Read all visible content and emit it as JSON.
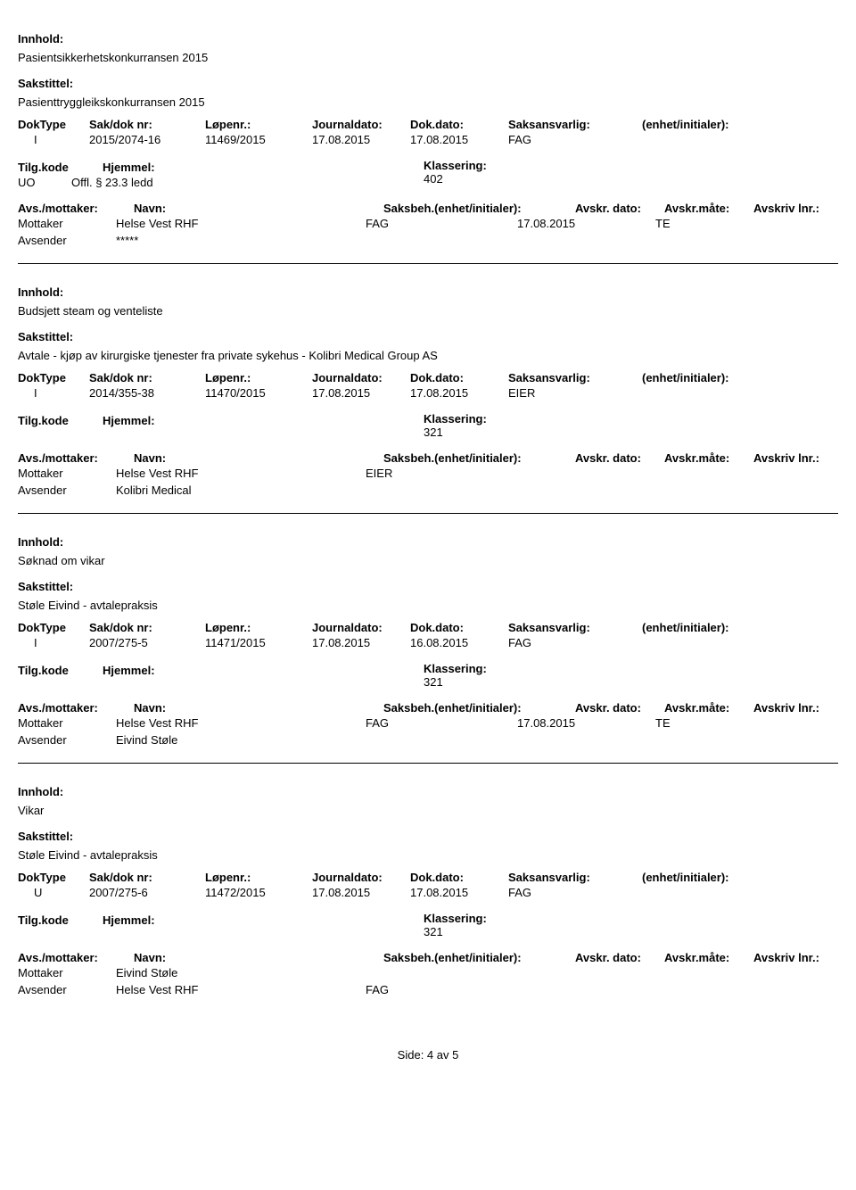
{
  "labels": {
    "innhold": "Innhold:",
    "sakstittel": "Sakstittel:",
    "doktype": "DokType",
    "sakdoknr": "Sak/dok nr:",
    "lopenr": "Løpenr.:",
    "journaldato": "Journaldato:",
    "dokdato": "Dok.dato:",
    "saksansvarlig": "Saksansvarlig:",
    "enhet": "(enhet/initialer):",
    "tilgkode": "Tilg.kode",
    "hjemmel": "Hjemmel:",
    "klassering": "Klassering:",
    "avsmottaker": "Avs./mottaker:",
    "navn": "Navn:",
    "saksbeh": "Saksbeh.(enhet/initialer):",
    "avskrdato": "Avskr. dato:",
    "avskrmate": "Avskr.måte:",
    "avskrlnr": "Avskriv lnr.:",
    "mottaker": "Mottaker",
    "avsender": "Avsender"
  },
  "entries": [
    {
      "innhold": "Pasientsikkerhetskonkurransen 2015",
      "sakstittel": "Pasienttryggleikskonkurransen 2015",
      "doktype": "I",
      "sakdoknr": "2015/2074-16",
      "lopenr": "11469/2015",
      "journaldato": "17.08.2015",
      "dokdato": "17.08.2015",
      "saksansvarlig": "FAG",
      "tilgkode": "UO",
      "hjemmel": "Offl. § 23.3 ledd",
      "klassering": "402",
      "mottaker_name": "Helse Vest RHF",
      "mottaker_unit": "FAG",
      "mottaker_date": "17.08.2015",
      "mottaker_te": "TE",
      "avsender_name": "*****",
      "avsender_unit": "",
      "show_tilgkode": true
    },
    {
      "innhold": "Budsjett steam og venteliste",
      "sakstittel": "Avtale - kjøp av kirurgiske tjenester fra private sykehus - Kolibri Medical Group AS",
      "doktype": "I",
      "sakdoknr": "2014/355-38",
      "lopenr": "11470/2015",
      "journaldato": "17.08.2015",
      "dokdato": "17.08.2015",
      "saksansvarlig": "EIER",
      "tilgkode": "",
      "hjemmel": "",
      "klassering": "321",
      "mottaker_name": "Helse Vest RHF",
      "mottaker_unit": "EIER",
      "mottaker_date": "",
      "mottaker_te": "",
      "avsender_name": "Kolibri Medical",
      "avsender_unit": "",
      "show_tilgkode": true
    },
    {
      "innhold": "Søknad om vikar",
      "sakstittel": "Støle Eivind - avtalepraksis",
      "doktype": "I",
      "sakdoknr": "2007/275-5",
      "lopenr": "11471/2015",
      "journaldato": "17.08.2015",
      "dokdato": "16.08.2015",
      "saksansvarlig": "FAG",
      "tilgkode": "",
      "hjemmel": "",
      "klassering": "321",
      "mottaker_name": "Helse Vest RHF",
      "mottaker_unit": "FAG",
      "mottaker_date": "17.08.2015",
      "mottaker_te": "TE",
      "avsender_name": "Eivind Støle",
      "avsender_unit": "",
      "show_tilgkode": true
    },
    {
      "innhold": "Vikar",
      "sakstittel": "Støle Eivind - avtalepraksis",
      "doktype": "U",
      "sakdoknr": "2007/275-6",
      "lopenr": "11472/2015",
      "journaldato": "17.08.2015",
      "dokdato": "17.08.2015",
      "saksansvarlig": "FAG",
      "tilgkode": "",
      "hjemmel": "",
      "klassering": "321",
      "mottaker_name": "Eivind Støle",
      "mottaker_unit": "",
      "mottaker_date": "",
      "mottaker_te": "",
      "avsender_name": "Helse Vest RHF",
      "avsender_unit": "FAG",
      "show_tilgkode": true
    }
  ],
  "footer": "Side: 4 av 5"
}
